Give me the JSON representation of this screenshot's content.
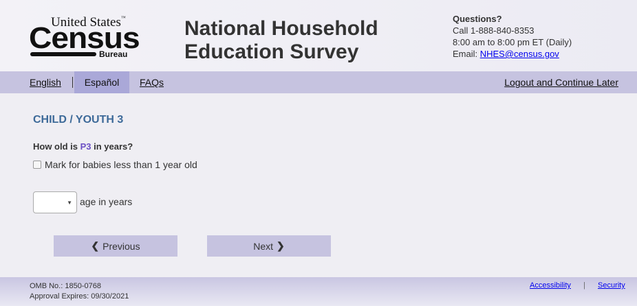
{
  "header": {
    "logo": {
      "line1": "United States",
      "tm": "™",
      "line2": "Census",
      "line3": "Bureau"
    },
    "title_line1": "National Household",
    "title_line2": "Education Survey",
    "contact": {
      "heading": "Questions?",
      "phone": "Call 1-888-840-8353",
      "hours": "8:00 am to 8:00 pm ET (Daily)",
      "email_label": "Email: ",
      "email": "NHES@census.gov"
    }
  },
  "nav": {
    "english": "English",
    "espanol": "Español",
    "faqs": "FAQs",
    "logout": "Logout and Continue Later"
  },
  "main": {
    "section_title": "CHILD / YOUTH 3",
    "question_pre": "How old is ",
    "question_person": "P3",
    "question_post": " in years?",
    "checkbox_label": "Mark for babies less than 1 year old",
    "checkbox_checked": false,
    "age_select_value": "",
    "age_label": "age in years",
    "previous": "Previous",
    "next": "Next"
  },
  "footer": {
    "omb": "OMB No.: 1850-0768",
    "expires": "Approval Expires: 09/30/2021",
    "accessibility": "Accessibility",
    "separator": "|",
    "security": "Security"
  },
  "colors": {
    "nav_bg": "#c6c3e0",
    "active_tab": "#aaa8d8",
    "section_title": "#3d6a99",
    "person": "#6b4fc4",
    "link": "#0000ee"
  }
}
